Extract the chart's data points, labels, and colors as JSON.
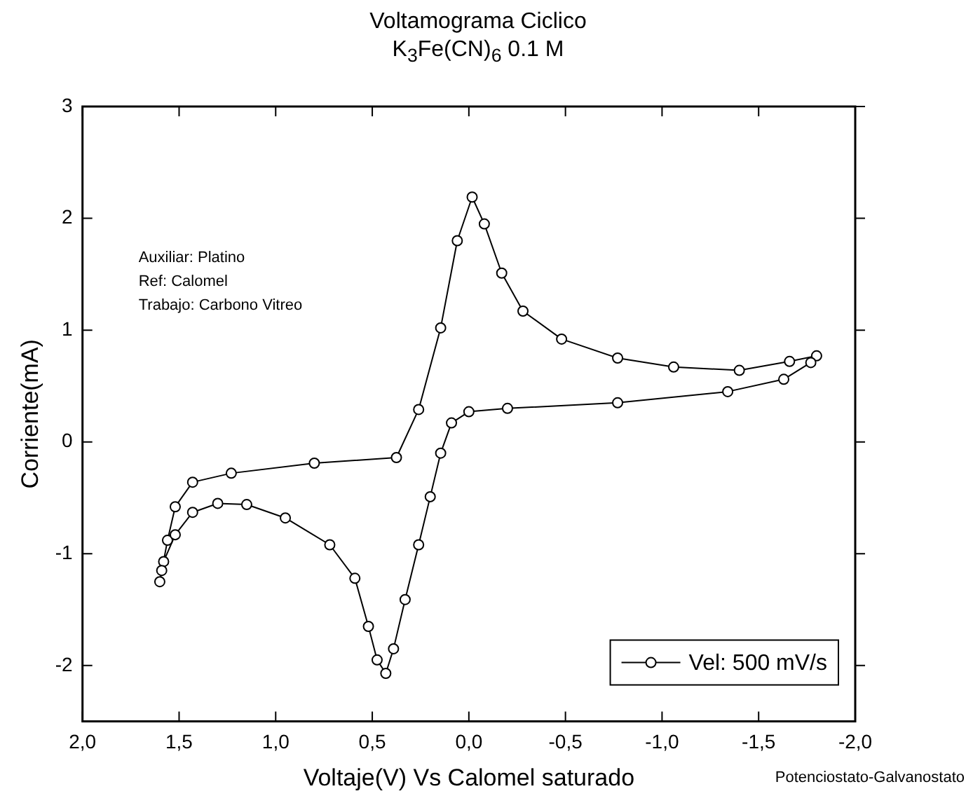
{
  "chart_data": {
    "type": "line",
    "title": "Voltamograma Ciclico",
    "subtitle": "K$_{3}$Fe(CN)$_{6}$ 0.1 M",
    "xlabel": "Voltaje(V) Vs Calomel saturado",
    "ylabel": "Corriente(mA)",
    "xlim": [
      2.0,
      -2.0
    ],
    "xticks": [
      {
        "value": 2.0,
        "label": "2,0"
      },
      {
        "value": 1.5,
        "label": "1,5"
      },
      {
        "value": 1.0,
        "label": "1,0"
      },
      {
        "value": 0.5,
        "label": "0,5"
      },
      {
        "value": 0,
        "label": "0,0"
      },
      {
        "value": -0.5,
        "label": "-0,5"
      },
      {
        "value": -1.0,
        "label": "-1,0"
      },
      {
        "value": -1.5,
        "label": "-1,5"
      },
      {
        "value": -2.0,
        "label": "-2,0"
      }
    ],
    "ylim": [
      -2.5,
      3
    ],
    "yticks": [
      -2,
      -1,
      0,
      1,
      2,
      3
    ],
    "grid": false,
    "legend": "bottom right",
    "marker": "circle",
    "line_style": "solid",
    "annotations": [
      "Auxiliar: Platino",
      "Ref: Calomel",
      "Trabajo: Carbono Vitreo",
      "Potenciostato-Galvanostato"
    ],
    "series": [
      {
        "name": "Vel: 500 mV/s",
        "color": "#000000",
        "x": [
          1.6,
          1.56,
          1.52,
          1.43,
          1.23,
          0.8,
          0.375,
          0.26,
          0.146,
          0.06,
          -0.017,
          -0.08,
          -0.17,
          -0.28,
          -0.48,
          -0.77,
          -1.06,
          -1.4,
          -1.66,
          -1.8,
          -1.77,
          -1.63,
          -1.34,
          -0.77,
          -0.2,
          0.0,
          0.09,
          0.146,
          0.2,
          0.26,
          0.33,
          0.39,
          0.43,
          0.475,
          0.52,
          0.59,
          0.72,
          0.95,
          1.15,
          1.3,
          1.43,
          1.52,
          1.58,
          1.59
        ],
        "values": [
          -1.25,
          -0.88,
          -0.58,
          -0.36,
          -0.28,
          -0.19,
          -0.14,
          0.29,
          1.02,
          1.8,
          2.19,
          1.95,
          1.51,
          1.17,
          0.92,
          0.75,
          0.67,
          0.64,
          0.72,
          0.77,
          0.71,
          0.56,
          0.45,
          0.35,
          0.3,
          0.27,
          0.17,
          -0.1,
          -0.49,
          -0.92,
          -1.41,
          -1.85,
          -2.07,
          -1.95,
          -1.65,
          -1.22,
          -0.92,
          -0.68,
          -0.56,
          -0.55,
          -0.63,
          -0.83,
          -1.07,
          -1.15
        ]
      }
    ]
  }
}
